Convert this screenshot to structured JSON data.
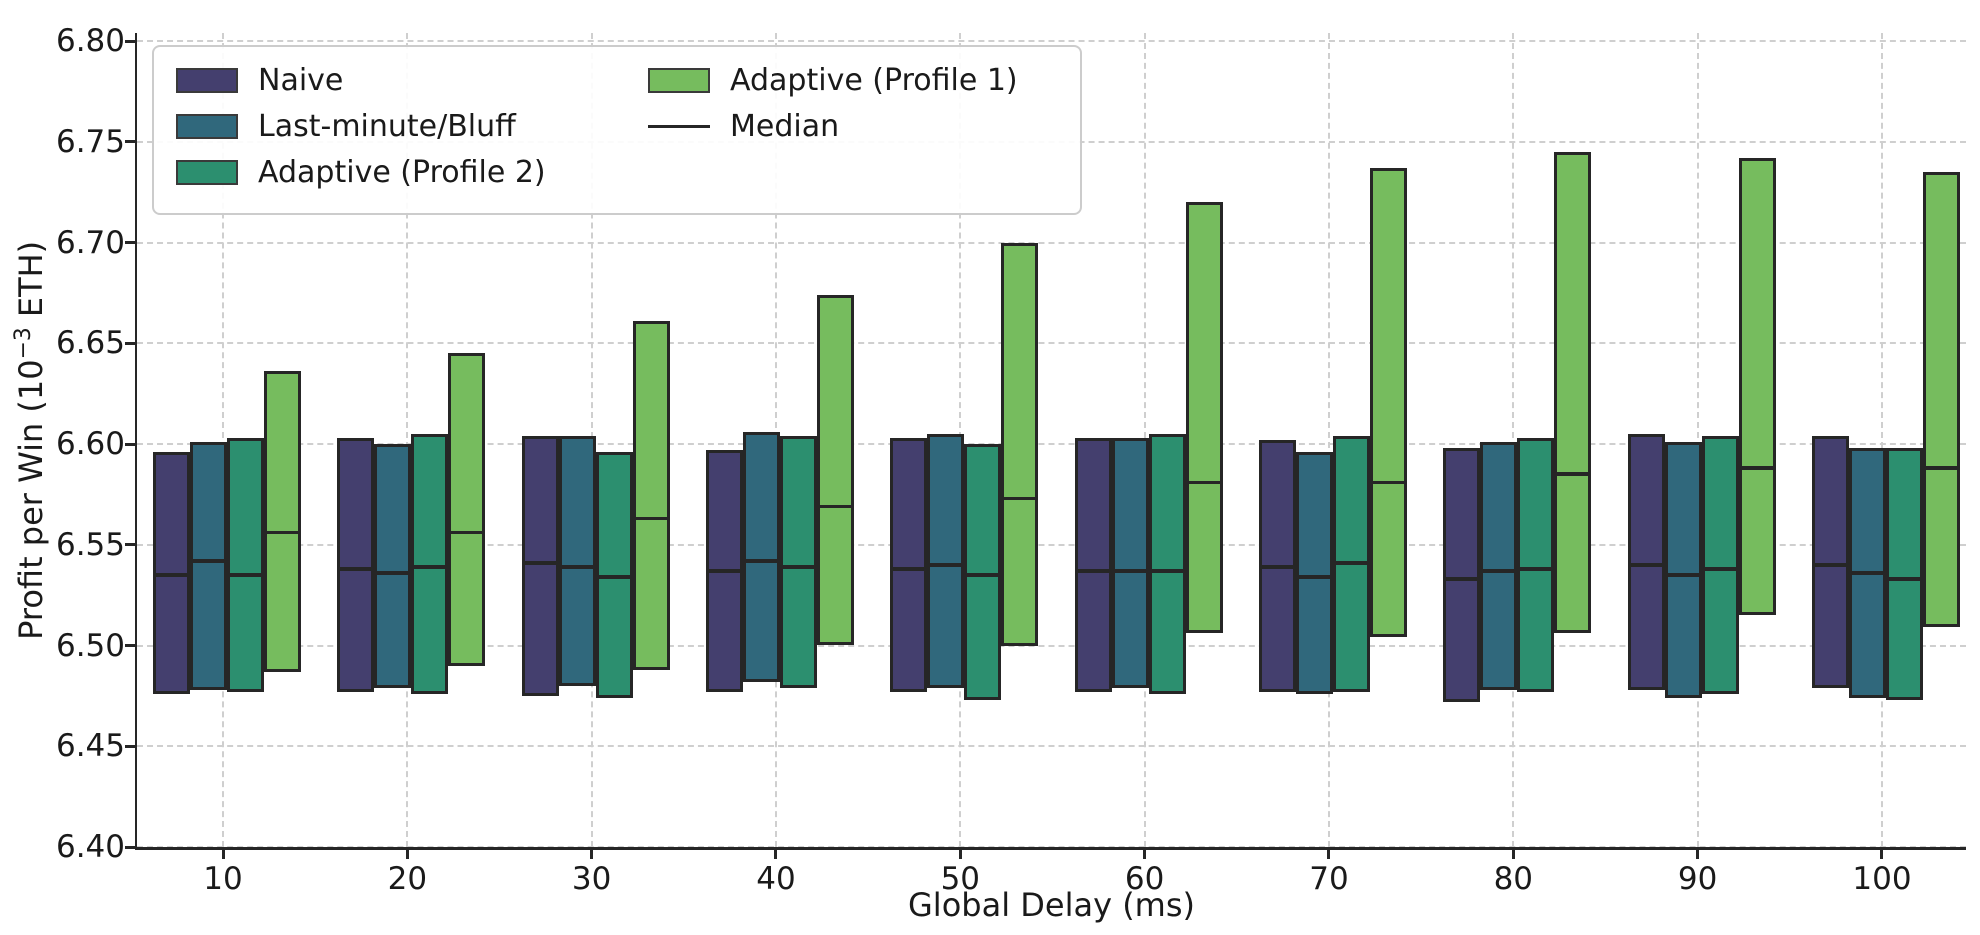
{
  "chart_data": {
    "type": "bar",
    "bar_style": "floating range bars (bottom to top) with inner median line",
    "title": "",
    "xlabel": "Global Delay (ms)",
    "ylabel": {
      "prefix": "Profit per Win (10",
      "superscript": "−3",
      "suffix": " ETH)"
    },
    "categories": [
      "10",
      "20",
      "30",
      "40",
      "50",
      "60",
      "70",
      "80",
      "90",
      "100"
    ],
    "ylim": [
      6.4,
      6.8
    ],
    "ytick_step": 0.05,
    "ytick_labels": [
      "6.40",
      "6.45",
      "6.50",
      "6.55",
      "6.60",
      "6.65",
      "6.70",
      "6.75",
      "6.80"
    ],
    "grid": true,
    "legend_position": "upper left",
    "median_label": "Median",
    "median_color": "#262626",
    "bar_edge_color": "#262626",
    "grid_color": "#cfcfcf",
    "series": [
      {
        "name": "Naive",
        "color": "#443f6e",
        "top": [
          6.596,
          6.603,
          6.604,
          6.597,
          6.603,
          6.603,
          6.602,
          6.598,
          6.605,
          6.604
        ],
        "median": [
          6.535,
          6.538,
          6.541,
          6.537,
          6.538,
          6.537,
          6.539,
          6.533,
          6.54,
          6.54
        ],
        "bottom": [
          6.476,
          6.477,
          6.475,
          6.477,
          6.477,
          6.477,
          6.477,
          6.472,
          6.478,
          6.479
        ]
      },
      {
        "name": "Last-minute/Bluff",
        "color": "#30687c",
        "top": [
          6.601,
          6.6,
          6.604,
          6.606,
          6.605,
          6.603,
          6.596,
          6.601,
          6.601,
          6.598
        ],
        "median": [
          6.542,
          6.536,
          6.539,
          6.542,
          6.54,
          6.537,
          6.534,
          6.537,
          6.535,
          6.536
        ],
        "bottom": [
          6.478,
          6.479,
          6.48,
          6.482,
          6.479,
          6.479,
          6.476,
          6.478,
          6.474,
          6.474
        ]
      },
      {
        "name": "Adaptive (Profile 2)",
        "color": "#2c8f6f",
        "top": [
          6.603,
          6.605,
          6.596,
          6.604,
          6.6,
          6.605,
          6.604,
          6.603,
          6.604,
          6.598
        ],
        "median": [
          6.535,
          6.539,
          6.534,
          6.539,
          6.535,
          6.537,
          6.541,
          6.538,
          6.538,
          6.533
        ],
        "bottom": [
          6.477,
          6.476,
          6.474,
          6.479,
          6.473,
          6.476,
          6.477,
          6.477,
          6.476,
          6.473
        ]
      },
      {
        "name": "Adaptive (Profile 1)",
        "color": "#76bc5e",
        "top": [
          6.636,
          6.645,
          6.661,
          6.674,
          6.7,
          6.72,
          6.737,
          6.745,
          6.742,
          6.735
        ],
        "median": [
          6.556,
          6.556,
          6.563,
          6.569,
          6.573,
          6.581,
          6.581,
          6.585,
          6.588,
          6.588
        ],
        "bottom": [
          6.487,
          6.49,
          6.488,
          6.5,
          6.5,
          6.506,
          6.504,
          6.506,
          6.515,
          6.509
        ]
      }
    ]
  }
}
